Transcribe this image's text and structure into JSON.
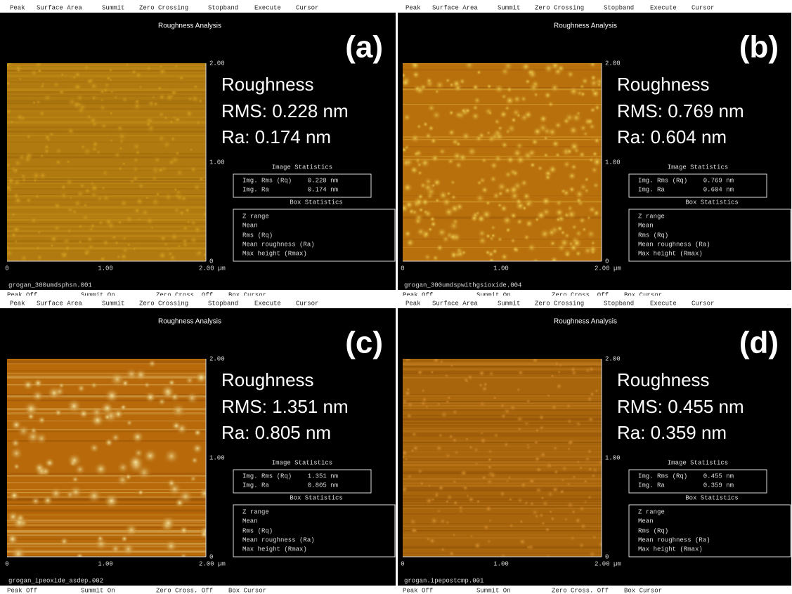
{
  "menu": [
    "Peak",
    "Surface Area",
    "Summit",
    "Zero Crossing",
    "Stopband",
    "Execute",
    "Cursor"
  ],
  "title": "Roughness Analysis",
  "y_ticks": [
    "2.00",
    "1.00",
    "0"
  ],
  "x_ticks": [
    "0",
    "1.00",
    "2.00 µm"
  ],
  "image_statistics": {
    "title": "Image Statistics",
    "labels": [
      "Img. Rms (Rq)",
      "Img. Ra"
    ]
  },
  "box_statistics": {
    "title": "Box Statistics",
    "rows": [
      "Z range",
      "Mean",
      "Rms (Rq)",
      "Mean roughness (Ra)",
      "Max height (Rmax)"
    ]
  },
  "status": [
    "Peak Off",
    "Summit On",
    "Zero Cross. Off",
    "Box Cursor"
  ],
  "panels": [
    {
      "label": "(a)",
      "roughness": [
        "Roughness",
        "RMS: 0.228 nm",
        "Ra: 0.174 nm"
      ],
      "image_values": [
        "0.228 nm",
        "0.174 nm"
      ],
      "filename": "grogan_300umdsphsn.001"
    },
    {
      "label": "(b)",
      "roughness": [
        "Roughness",
        "RMS: 0.769 nm",
        "Ra: 0.604 nm"
      ],
      "image_values": [
        "0.769 nm",
        "0.604 nm"
      ],
      "filename": "grogan_300umdspwithgsioxide.004"
    },
    {
      "label": "(c)",
      "roughness": [
        "Roughness",
        "RMS: 1.351 nm",
        "Ra: 0.805 nm"
      ],
      "image_values": [
        "1.351 nm",
        "0.805 nm"
      ],
      "filename": "grogan_ipeoxide_asdep.002"
    },
    {
      "label": "(d)",
      "roughness": [
        "Roughness",
        "RMS: 0.455 nm",
        "Ra: 0.359 nm"
      ],
      "image_values": [
        "0.455 nm",
        "0.359 nm"
      ],
      "filename": "grogan.ipepostcmp.001"
    }
  ]
}
